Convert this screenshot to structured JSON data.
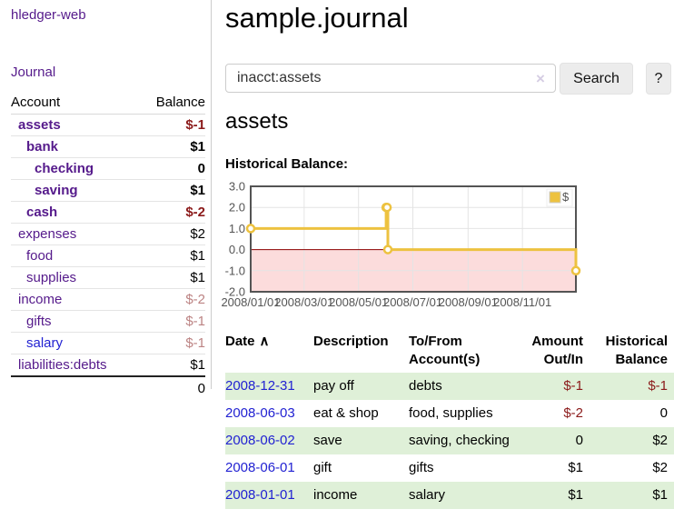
{
  "sidebar": {
    "brand": "hledger-web",
    "nav": {
      "journal_label": "Journal"
    },
    "accounts_table": {
      "headers": {
        "account": "Account",
        "balance": "Balance"
      },
      "rows": [
        {
          "name": "assets",
          "balance": "$-1",
          "indent": 1,
          "bold": true,
          "name_style": "purple",
          "balance_style": "neg-strong"
        },
        {
          "name": "bank",
          "balance": "$1",
          "indent": 2,
          "bold": true,
          "name_style": "purple",
          "balance_style": ""
        },
        {
          "name": "checking",
          "balance": "0",
          "indent": 3,
          "bold": true,
          "name_style": "purple",
          "balance_style": ""
        },
        {
          "name": "saving",
          "balance": "$1",
          "indent": 3,
          "bold": true,
          "name_style": "purple",
          "balance_style": ""
        },
        {
          "name": "cash",
          "balance": "$-2",
          "indent": 2,
          "bold": true,
          "name_style": "purple",
          "balance_style": "neg-strong"
        },
        {
          "name": "expenses",
          "balance": "$2",
          "indent": 1,
          "bold": false,
          "name_style": "purple",
          "balance_style": ""
        },
        {
          "name": "food",
          "balance": "$1",
          "indent": 2,
          "bold": false,
          "name_style": "purple",
          "balance_style": ""
        },
        {
          "name": "supplies",
          "balance": "$1",
          "indent": 2,
          "bold": false,
          "name_style": "purple",
          "balance_style": ""
        },
        {
          "name": "income",
          "balance": "$-2",
          "indent": 1,
          "bold": false,
          "name_style": "purple",
          "balance_style": "neg-faded"
        },
        {
          "name": "gifts",
          "balance": "$-1",
          "indent": 2,
          "bold": false,
          "name_style": "purple",
          "balance_style": "neg-faded"
        },
        {
          "name": "salary",
          "balance": "$-1",
          "indent": 2,
          "bold": false,
          "name_style": "blue",
          "balance_style": "neg-faded"
        },
        {
          "name": "liabilities:debts",
          "balance": "$1",
          "indent": 1,
          "bold": false,
          "name_style": "purple",
          "balance_style": ""
        }
      ],
      "total": "0"
    }
  },
  "header": {
    "title": "sample.journal"
  },
  "search": {
    "value": "inacct:assets",
    "clear_icon": "×",
    "button_label": "Search",
    "help_label": "?"
  },
  "account_page": {
    "heading": "assets",
    "chart_title": "Historical Balance:"
  },
  "chart_data": {
    "type": "line",
    "title": "Historical Balance:",
    "step": true,
    "series": [
      {
        "name": "$",
        "color": "#EDC240",
        "points": [
          [
            "2008-01-01",
            1
          ],
          [
            "2008-06-01",
            2
          ],
          [
            "2008-06-02",
            2
          ],
          [
            "2008-06-03",
            0
          ],
          [
            "2008-12-31",
            -1
          ]
        ]
      }
    ],
    "xlim": [
      "2008-01-01",
      "2008-12-31"
    ],
    "ylim": [
      -2.0,
      3.0
    ],
    "y_ticks": [
      {
        "v": 3.0,
        "label": "3.0"
      },
      {
        "v": 2.0,
        "label": "2.0"
      },
      {
        "v": 1.0,
        "label": "1.0"
      },
      {
        "v": 0.0,
        "label": "0.0"
      },
      {
        "v": -1.0,
        "label": "-1.0"
      },
      {
        "v": -2.0,
        "label": "-2.0"
      }
    ],
    "x_ticks": [
      {
        "date": "2008-01-01",
        "label": "2008/01/01"
      },
      {
        "date": "2008-03-01",
        "label": "2008/03/01"
      },
      {
        "date": "2008-05-01",
        "label": "2008/05/01"
      },
      {
        "date": "2008-07-01",
        "label": "2008/07/01"
      },
      {
        "date": "2008-09-01",
        "label": "2008/09/01"
      },
      {
        "date": "2008-11-01",
        "label": "2008/11/01"
      }
    ],
    "legend": {
      "position": "top-right",
      "label": "$",
      "swatch_color": "#EDC240"
    },
    "grid": true,
    "negative_region_color": "#fcdcdc",
    "zero_line_color": "#8b0000",
    "axis_text_color": "#545454"
  },
  "register": {
    "sort_indicator": "∧",
    "columns": [
      {
        "label": "Date"
      },
      {
        "label": "Description"
      },
      {
        "label": "To/From Account(s)"
      },
      {
        "label": "Amount Out/In"
      },
      {
        "label": "Historical Balance"
      }
    ],
    "rows": [
      {
        "date": "2008-12-31",
        "description": "pay off",
        "accounts": "debts",
        "amount": "$-1",
        "amount_negative": true,
        "balance": "$-1",
        "balance_negative": true,
        "shaded": true
      },
      {
        "date": "2008-06-03",
        "description": "eat & shop",
        "accounts": "food, supplies",
        "amount": "$-2",
        "amount_negative": true,
        "balance": "0",
        "balance_negative": false,
        "shaded": false
      },
      {
        "date": "2008-06-02",
        "description": "save",
        "accounts": "saving, checking",
        "amount": "0",
        "amount_negative": false,
        "balance": "$2",
        "balance_negative": false,
        "shaded": true
      },
      {
        "date": "2008-06-01",
        "description": "gift",
        "accounts": "gifts",
        "amount": "$1",
        "amount_negative": false,
        "balance": "$2",
        "balance_negative": false,
        "shaded": false
      },
      {
        "date": "2008-01-01",
        "description": "income",
        "accounts": "salary",
        "amount": "$1",
        "amount_negative": false,
        "balance": "$1",
        "balance_negative": false,
        "shaded": true
      }
    ]
  }
}
